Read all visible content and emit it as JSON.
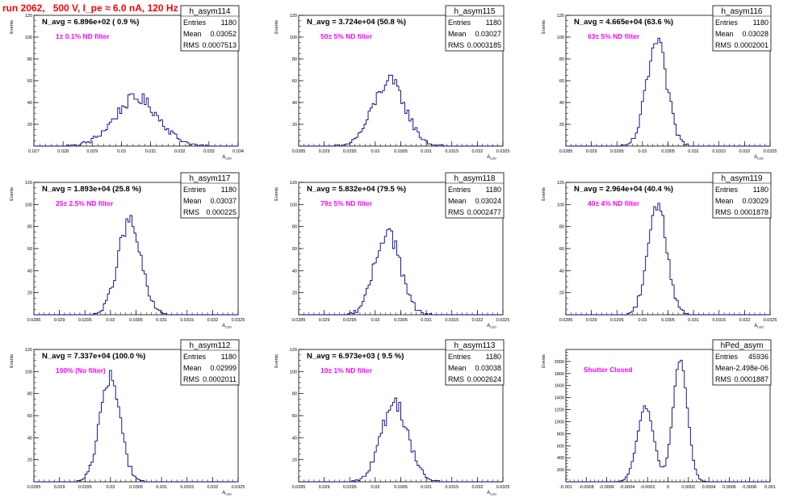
{
  "run_title": "run 2062,   500 V, I_pe ≈ 6.0 nA, 120 Hz",
  "colors": {
    "histogram": "#00008b",
    "annotation": "#ff00ff",
    "title": "#ff0000",
    "frame": "#000000"
  },
  "chart_data": [
    {
      "type": "histogram",
      "name": "h_asym114",
      "nav_label": "N_avg = 6.896e+02 ( 0.9 %)",
      "filter_label": "1± 0.1% ND filter",
      "stats": [
        {
          "label": "Entries",
          "value": "1180"
        },
        {
          "label": "Mean",
          "value": "0.03052"
        },
        {
          "label": "RMS",
          "value": "0.0007513"
        }
      ],
      "ylabel": "Events",
      "xlabel": "A_LED",
      "xlim": [
        0.027,
        0.034
      ],
      "ylim": [
        0,
        120
      ],
      "xticks": [
        "0.027",
        "0.028",
        "0.029",
        "0.03",
        "0.031",
        "0.032",
        "0.033",
        "0.034"
      ],
      "yticks": [
        "20",
        "40",
        "60",
        "80",
        "100",
        "120"
      ],
      "mean": 0.03052,
      "rms": 0.0007513,
      "entries": 1180
    },
    {
      "type": "histogram",
      "name": "h_asym115",
      "nav_label": "N_avg = 3.724e+04 (50.8 %)",
      "filter_label": "50± 5% ND filter",
      "stats": [
        {
          "label": "Entries",
          "value": "1180"
        },
        {
          "label": "Mean",
          "value": "0.03027"
        },
        {
          "label": "RMS",
          "value": "0.0003185"
        }
      ],
      "ylabel": "Events",
      "xlabel": "A_LED",
      "xlim": [
        0.0285,
        0.0325
      ],
      "ylim": [
        0,
        120
      ],
      "xticks": [
        "0.0285",
        "0.029",
        "0.0295",
        "0.03",
        "0.0305",
        "0.031",
        "0.0315",
        "0.032",
        "0.0325"
      ],
      "yticks": [
        "20",
        "40",
        "60",
        "80",
        "100",
        "120"
      ],
      "mean": 0.03027,
      "rms": 0.0003185,
      "entries": 1180
    },
    {
      "type": "histogram",
      "name": "h_asym116",
      "nav_label": "N_avg = 4.665e+04 (63.6 %)",
      "filter_label": "63± 5% ND filter",
      "stats": [
        {
          "label": "Entries",
          "value": "1180"
        },
        {
          "label": "Mean",
          "value": "0.03028"
        },
        {
          "label": "RMS",
          "value": "0.0002001"
        }
      ],
      "ylabel": "Events",
      "xlabel": "A_LED",
      "xlim": [
        0.0285,
        0.0325
      ],
      "ylim": [
        0,
        120
      ],
      "xticks": [
        "0.0285",
        "0.029",
        "0.0295",
        "0.03",
        "0.0305",
        "0.031",
        "0.0315",
        "0.032",
        "0.0325"
      ],
      "yticks": [
        "20",
        "40",
        "60",
        "80",
        "100",
        "120"
      ],
      "mean": 0.03028,
      "rms": 0.0002001,
      "entries": 1180
    },
    {
      "type": "histogram",
      "name": "h_asym117",
      "nav_label": "N_avg = 1.893e+04 (25.8 %)",
      "filter_label": "25± 2.5% ND filter",
      "stats": [
        {
          "label": "Entries",
          "value": "1180"
        },
        {
          "label": "Mean",
          "value": "0.03037"
        },
        {
          "label": "RMS",
          "value": "0.000225"
        }
      ],
      "ylabel": "Events",
      "xlabel": "A_LED",
      "xlim": [
        0.0285,
        0.0325
      ],
      "ylim": [
        0,
        120
      ],
      "xticks": [
        "0.0285",
        "0.029",
        "0.0295",
        "0.03",
        "0.0305",
        "0.031",
        "0.0315",
        "0.032",
        "0.0325"
      ],
      "yticks": [
        "20",
        "40",
        "60",
        "80",
        "100",
        "120"
      ],
      "mean": 0.03037,
      "rms": 0.000225,
      "entries": 1180
    },
    {
      "type": "histogram",
      "name": "h_asym118",
      "nav_label": "N_avg = 5.832e+04 (79.5 %)",
      "filter_label": "79± 5% ND filter",
      "stats": [
        {
          "label": "Entries",
          "value": "1180"
        },
        {
          "label": "Mean",
          "value": "0.03024"
        },
        {
          "label": "RMS",
          "value": "0.0002477"
        }
      ],
      "ylabel": "Events",
      "xlabel": "A_LED",
      "xlim": [
        0.0285,
        0.0325
      ],
      "ylim": [
        0,
        120
      ],
      "xticks": [
        "0.0285",
        "0.029",
        "0.0295",
        "0.03",
        "0.0305",
        "0.031",
        "0.0315",
        "0.032",
        "0.0325"
      ],
      "yticks": [
        "20",
        "40",
        "60",
        "80",
        "100",
        "120"
      ],
      "mean": 0.03024,
      "rms": 0.0002477,
      "entries": 1180
    },
    {
      "type": "histogram",
      "name": "h_asym119",
      "nav_label": "N_avg = 2.964e+04 (40.4 %)",
      "filter_label": "40± 4% ND filter",
      "stats": [
        {
          "label": "Entries",
          "value": "1180"
        },
        {
          "label": "Mean",
          "value": "0.03029"
        },
        {
          "label": "RMS",
          "value": "0.0001878"
        }
      ],
      "ylabel": "Events",
      "xlabel": "A_LED",
      "xlim": [
        0.0285,
        0.0325
      ],
      "ylim": [
        0,
        120
      ],
      "xticks": [
        "0.0285",
        "0.029",
        "0.0295",
        "0.03",
        "0.0305",
        "0.031",
        "0.0315",
        "0.032",
        "0.0325"
      ],
      "yticks": [
        "20",
        "40",
        "60",
        "80",
        "100",
        "120"
      ],
      "mean": 0.03029,
      "rms": 0.0001878,
      "entries": 1180
    },
    {
      "type": "histogram",
      "name": "h_asym112",
      "nav_label": "N_avg = 7.337e+04 (100.0 %)",
      "filter_label": "100% (No filter)",
      "stats": [
        {
          "label": "Entries",
          "value": "1180"
        },
        {
          "label": "Mean",
          "value": "0.02999"
        },
        {
          "label": "RMS",
          "value": "0.0002011"
        }
      ],
      "ylabel": "Events",
      "xlabel": "A_LED",
      "xlim": [
        0.0285,
        0.0325
      ],
      "ylim": [
        0,
        120
      ],
      "xticks": [
        "0.0285",
        "0.029",
        "0.0295",
        "0.03",
        "0.0305",
        "0.031",
        "0.0315",
        "0.032",
        "0.0325"
      ],
      "yticks": [
        "20",
        "40",
        "60",
        "80",
        "100",
        "120"
      ],
      "mean": 0.02999,
      "rms": 0.0002011,
      "entries": 1180
    },
    {
      "type": "histogram",
      "name": "h_asym113",
      "nav_label": "N_avg = 6.973e+03 ( 9.5 %)",
      "filter_label": "10± 1% ND filter",
      "stats": [
        {
          "label": "Entries",
          "value": "1180"
        },
        {
          "label": "Mean",
          "value": "0.03038"
        },
        {
          "label": "RMS",
          "value": "0.0002624"
        }
      ],
      "ylabel": "Events",
      "xlabel": "A_LED",
      "xlim": [
        0.0285,
        0.0325
      ],
      "ylim": [
        0,
        120
      ],
      "xticks": [
        "0.0285",
        "0.029",
        "0.0295",
        "0.03",
        "0.0305",
        "0.031",
        "0.0315",
        "0.032",
        "0.0325"
      ],
      "yticks": [
        "20",
        "40",
        "60",
        "80",
        "100",
        "120"
      ],
      "mean": 0.03038,
      "rms": 0.0002624,
      "entries": 1180
    },
    {
      "type": "histogram",
      "name": "hPed_asym",
      "nav_label": "",
      "filter_label": "Shutter Closed",
      "stats": [
        {
          "label": "Entries",
          "value": "45936"
        },
        {
          "label": "Mean",
          "value": "-2.498e-06"
        },
        {
          "label": "RMS",
          "value": "0.0001887"
        }
      ],
      "ylabel": "Events",
      "xlabel": "",
      "xlim": [
        -0.001,
        0.001
      ],
      "ylim": [
        0,
        2200
      ],
      "xticks": [
        "-0.001",
        "-0.0008",
        "-0.0006",
        "-0.0004",
        "-0.0002",
        "0",
        "0.0002",
        "0.0004",
        "0.0006",
        "0.0008",
        "0.001"
      ],
      "yticks": [
        "200",
        "400",
        "600",
        "800",
        "1000",
        "1200",
        "1400",
        "1600",
        "1800",
        "2000"
      ],
      "mean": -2.498e-06,
      "rms": 0.0001887,
      "entries": 45936,
      "components": [
        {
          "mean": -0.00022,
          "sigma": 8e-05,
          "peak": 1250
        },
        {
          "mean": 0.00012,
          "sigma": 7e-05,
          "peak": 2050
        }
      ]
    }
  ]
}
